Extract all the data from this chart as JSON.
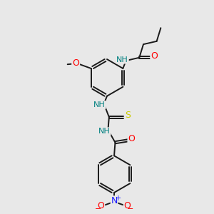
{
  "bg_color": "#e8e8e8",
  "bond_color": "#1a1a1a",
  "atom_colors": {
    "N": "#1a1aff",
    "NH": "#008080",
    "O": "#ff0000",
    "S": "#cccc00",
    "C": "#1a1a1a"
  },
  "bond_width": 1.4,
  "figsize": [
    3.0,
    3.0
  ],
  "dpi": 100
}
